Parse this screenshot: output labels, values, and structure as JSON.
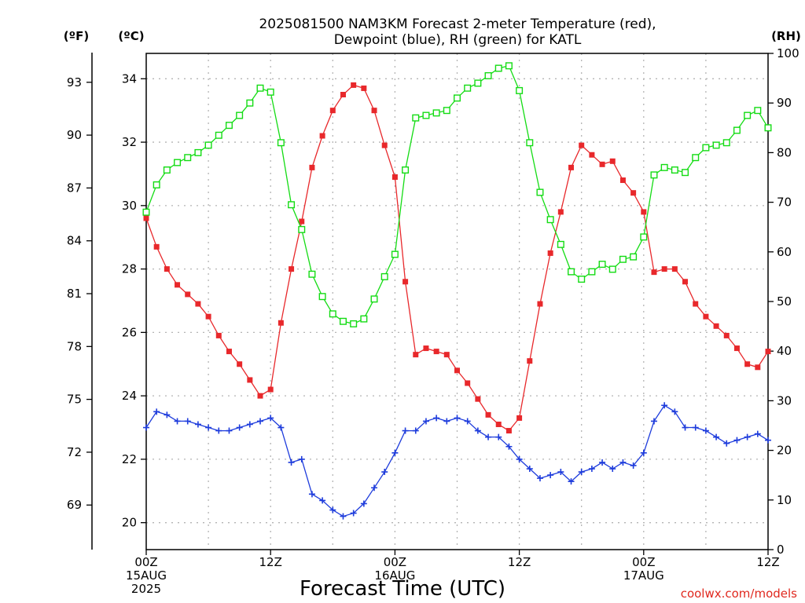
{
  "title_line1": "2025081500 NAM3KM Forecast 2-meter Temperature (red),",
  "title_line2": "Dewpoint (blue), RH (green) for KATL",
  "units": {
    "f": "(ºF)",
    "c": "(ºC)",
    "rh": "(RH)"
  },
  "xlabel": "Forecast Time (UTC)",
  "credit": "coolwx.com/models",
  "colors": {
    "temperature": "#e8282b",
    "dewpoint": "#1e3cdc",
    "rh": "#14dc14",
    "grid": "#b4b4b4"
  },
  "chart_data": {
    "type": "line",
    "x": [
      0,
      1,
      2,
      3,
      4,
      5,
      6,
      7,
      8,
      9,
      10,
      11,
      12,
      13,
      14,
      15,
      16,
      17,
      18,
      19,
      20,
      21,
      22,
      23,
      24,
      25,
      26,
      27,
      28,
      29,
      30,
      31,
      32,
      33,
      34,
      35,
      36,
      37,
      38,
      39,
      40,
      41,
      42,
      43,
      44,
      45,
      46,
      47,
      48,
      49,
      50,
      51,
      52,
      53,
      54,
      55,
      56,
      57,
      58,
      59,
      60
    ],
    "x_ticks": [
      {
        "x": 0,
        "lines": [
          "00Z",
          "15AUG",
          "2025"
        ]
      },
      {
        "x": 12,
        "lines": [
          "12Z"
        ]
      },
      {
        "x": 24,
        "lines": [
          "00Z",
          "16AUG"
        ]
      },
      {
        "x": 36,
        "lines": [
          "12Z"
        ]
      },
      {
        "x": 48,
        "lines": [
          "00Z",
          "17AUG"
        ]
      },
      {
        "x": 60,
        "lines": [
          "12Z"
        ]
      }
    ],
    "xlim": [
      0,
      60
    ],
    "ylim_c": [
      19.15,
      34.8
    ],
    "ylim_rh": [
      0,
      100
    ],
    "yticks_c": [
      "20",
      "22",
      "24",
      "26",
      "28",
      "30",
      "32",
      "34"
    ],
    "yticks_f": [
      "69",
      "72",
      "75",
      "78",
      "81",
      "84",
      "87",
      "90",
      "93"
    ],
    "yticks_rh": [
      "0",
      "10",
      "20",
      "30",
      "40",
      "50",
      "60",
      "70",
      "80",
      "90",
      "100"
    ],
    "grid": true,
    "series": [
      {
        "name": "Temperature",
        "unit": "C",
        "values": [
          29.6,
          28.7,
          28.0,
          27.5,
          27.2,
          26.9,
          26.5,
          25.9,
          25.4,
          25.0,
          24.5,
          24.0,
          24.2,
          26.3,
          28.0,
          29.5,
          31.2,
          32.2,
          33.0,
          33.5,
          33.8,
          33.7,
          33.0,
          31.9,
          30.9,
          27.6,
          25.3,
          25.5,
          25.4,
          25.3,
          24.8,
          24.4,
          23.9,
          23.4,
          23.1,
          22.9,
          23.3,
          25.1,
          26.9,
          28.5,
          29.8,
          31.2,
          31.9,
          31.6,
          31.3,
          31.4,
          30.8,
          30.4,
          29.8,
          27.9,
          28.0,
          28.0,
          27.6,
          26.9,
          26.5,
          26.2,
          25.9,
          25.5,
          25.0,
          24.9,
          25.4
        ]
      },
      {
        "name": "Dewpoint",
        "unit": "C",
        "values": [
          23.0,
          23.5,
          23.4,
          23.2,
          23.2,
          23.1,
          23.0,
          22.9,
          22.9,
          23.0,
          23.1,
          23.2,
          23.3,
          23.0,
          21.9,
          22.0,
          20.9,
          20.7,
          20.4,
          20.2,
          20.3,
          20.6,
          21.1,
          21.6,
          22.2,
          22.9,
          22.9,
          23.2,
          23.3,
          23.2,
          23.3,
          23.2,
          22.9,
          22.7,
          22.7,
          22.4,
          22.0,
          21.7,
          21.4,
          21.5,
          21.6,
          21.3,
          21.6,
          21.7,
          21.9,
          21.7,
          21.9,
          21.8,
          22.2,
          23.2,
          23.7,
          23.5,
          23.0,
          23.0,
          22.9,
          22.7,
          22.5,
          22.6,
          22.7,
          22.8,
          22.6
        ]
      },
      {
        "name": "RH",
        "unit": "%",
        "values": [
          68,
          73.5,
          76.5,
          78,
          79,
          80,
          81.5,
          83.5,
          85.5,
          87.5,
          90,
          93,
          92.2,
          82,
          69.5,
          64.5,
          55.5,
          51,
          47.5,
          46,
          45.5,
          46.5,
          50.5,
          55,
          59.5,
          76.5,
          87,
          87.5,
          88,
          88.5,
          91,
          93,
          94,
          95.5,
          97,
          97.5,
          92.5,
          82,
          72,
          66.5,
          61.5,
          56,
          54.5,
          56,
          57.5,
          56.5,
          58.5,
          59,
          63,
          75.5,
          77,
          76.5,
          76,
          79,
          81,
          81.5,
          82,
          84.5,
          87.5,
          88.5,
          85
        ]
      }
    ]
  }
}
